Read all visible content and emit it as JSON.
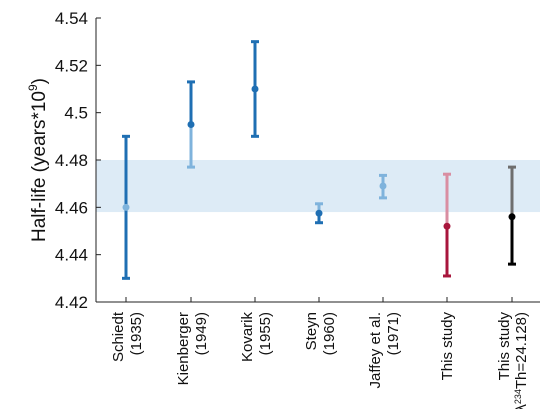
{
  "chart_data": {
    "type": "errorbar",
    "ylabel": "Half-life (years*10",
    "ylabel_exponent": "9",
    "ylabel_close": ")",
    "ylim": [
      4.42,
      4.54
    ],
    "yticks": [
      4.42,
      4.44,
      4.46,
      4.48,
      4.5,
      4.52,
      4.54
    ],
    "ytick_labels": [
      "4.42",
      "4.44",
      "4.46",
      "4.48",
      "4.5",
      "4.52",
      "4.54"
    ],
    "band": {
      "low": 4.458,
      "high": 4.48,
      "color": "#ddebf6"
    },
    "colors": {
      "dark_blue": "#1f6fb3",
      "light_blue": "#7fb3dc",
      "crimson": "#a8163c",
      "pink": "#d98ea2",
      "black": "#000000",
      "gray": "#6e6e6e"
    },
    "categories": [
      {
        "line1": "Schiedt",
        "line2": "(1935)"
      },
      {
        "line1": "Kienberger",
        "line2": "(1949)"
      },
      {
        "line1": "Kovarik",
        "line2": "(1955)"
      },
      {
        "line1": "Steyn",
        "line2": "(1960)"
      },
      {
        "line1": "Jaffey et al.",
        "line2": "(1971)"
      },
      {
        "line1": "This study",
        "line2": ""
      },
      {
        "line1": "This study",
        "line2_prefix": "λ",
        "line2_sup": "234",
        "line2_suffix": "Th=24.128)"
      }
    ],
    "points": [
      {
        "y": 4.46,
        "low": 4.43,
        "high": 4.49,
        "upper_color": "dark_blue",
        "lower_color": "dark_blue",
        "marker_color": "light_blue"
      },
      {
        "y": 4.495,
        "low": 4.477,
        "high": 4.513,
        "upper_color": "dark_blue",
        "lower_color": "light_blue",
        "marker_color": "dark_blue"
      },
      {
        "y": 4.51,
        "low": 4.49,
        "high": 4.53,
        "upper_color": "dark_blue",
        "lower_color": "dark_blue",
        "marker_color": "dark_blue"
      },
      {
        "y": 4.4575,
        "low": 4.4535,
        "high": 4.4615,
        "upper_color": "light_blue",
        "lower_color": "dark_blue",
        "marker_color": "dark_blue"
      },
      {
        "y": 4.469,
        "low": 4.464,
        "high": 4.4735,
        "upper_color": "light_blue",
        "lower_color": "light_blue",
        "marker_color": "light_blue"
      },
      {
        "y": 4.452,
        "low": 4.431,
        "high": 4.474,
        "upper_color": "pink",
        "lower_color": "crimson",
        "marker_color": "crimson"
      },
      {
        "y": 4.456,
        "low": 4.436,
        "high": 4.477,
        "upper_color": "gray",
        "lower_color": "black",
        "marker_color": "black"
      }
    ]
  }
}
